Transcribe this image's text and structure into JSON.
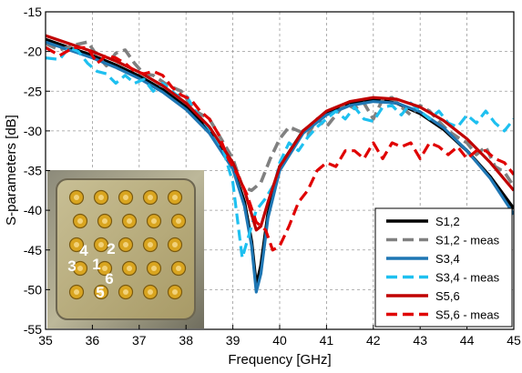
{
  "chart_data": {
    "type": "line",
    "xlabel": "Frequency [GHz]",
    "ylabel": "S-parameters [dB]",
    "xlim": [
      35,
      45
    ],
    "ylim": [
      -55,
      -15
    ],
    "xticks": [
      35,
      36,
      37,
      38,
      39,
      40,
      41,
      42,
      43,
      44,
      45
    ],
    "yticks": [
      -15,
      -20,
      -25,
      -30,
      -35,
      -40,
      -45,
      -50,
      -55
    ],
    "grid": true,
    "legend_position": "bottom-right",
    "series": [
      {
        "name": "S1,2",
        "color": "#000000",
        "style": "solid",
        "points": [
          [
            35,
            -18.5
          ],
          [
            35.5,
            -19.5
          ],
          [
            36,
            -20.5
          ],
          [
            36.5,
            -21.7
          ],
          [
            37,
            -23.1
          ],
          [
            37.5,
            -24.8
          ],
          [
            38,
            -27.0
          ],
          [
            38.5,
            -30.0
          ],
          [
            39,
            -34.5
          ],
          [
            39.25,
            -39.0
          ],
          [
            39.4,
            -44.0
          ],
          [
            39.5,
            -49.5
          ],
          [
            39.6,
            -47.0
          ],
          [
            39.75,
            -40.5
          ],
          [
            40,
            -34.5
          ],
          [
            40.5,
            -30.0
          ],
          [
            41,
            -27.8
          ],
          [
            41.5,
            -26.6
          ],
          [
            42,
            -26.0
          ],
          [
            42.5,
            -26.5
          ],
          [
            43,
            -27.8
          ],
          [
            43.5,
            -29.8
          ],
          [
            44,
            -32.5
          ],
          [
            44.5,
            -35.8
          ],
          [
            45,
            -39.8
          ]
        ]
      },
      {
        "name": "S1,2 - meas",
        "color": "#808080",
        "style": "dashed",
        "points": [
          [
            35,
            -19.0
          ],
          [
            35.3,
            -19.8
          ],
          [
            35.6,
            -19.2
          ],
          [
            35.9,
            -18.8
          ],
          [
            36.1,
            -20.5
          ],
          [
            36.3,
            -21.8
          ],
          [
            36.5,
            -20.2
          ],
          [
            36.7,
            -19.8
          ],
          [
            36.9,
            -21.5
          ],
          [
            37.1,
            -22.8
          ],
          [
            37.3,
            -23.0
          ],
          [
            37.6,
            -24.2
          ],
          [
            37.9,
            -25.0
          ],
          [
            38.2,
            -27.5
          ],
          [
            38.5,
            -28.5
          ],
          [
            38.8,
            -31.5
          ],
          [
            39.0,
            -33.5
          ],
          [
            39.2,
            -37.0
          ],
          [
            39.4,
            -37.5
          ],
          [
            39.6,
            -36.5
          ],
          [
            39.8,
            -33.5
          ],
          [
            40.0,
            -31.0
          ],
          [
            40.2,
            -29.5
          ],
          [
            40.4,
            -30.0
          ],
          [
            40.6,
            -30.5
          ],
          [
            40.8,
            -28.5
          ],
          [
            41.0,
            -29.5
          ],
          [
            41.2,
            -28.0
          ],
          [
            41.4,
            -26.5
          ],
          [
            41.6,
            -27.2
          ],
          [
            41.8,
            -26.5
          ],
          [
            42.0,
            -28.5
          ],
          [
            42.2,
            -26.0
          ],
          [
            42.4,
            -25.8
          ],
          [
            42.6,
            -27.0
          ],
          [
            42.8,
            -28.0
          ],
          [
            43.0,
            -26.8
          ],
          [
            43.2,
            -27.5
          ],
          [
            43.4,
            -28.8
          ],
          [
            43.6,
            -30.0
          ],
          [
            43.8,
            -30.8
          ],
          [
            44.0,
            -31.5
          ],
          [
            44.2,
            -33.0
          ],
          [
            44.4,
            -32.0
          ],
          [
            44.6,
            -34.5
          ],
          [
            44.8,
            -35.2
          ],
          [
            45.0,
            -37.0
          ]
        ]
      },
      {
        "name": "S3,4",
        "color": "#1f77b4",
        "style": "solid",
        "points": [
          [
            35,
            -18.8
          ],
          [
            35.5,
            -19.8
          ],
          [
            36,
            -20.8
          ],
          [
            36.5,
            -22.0
          ],
          [
            37,
            -23.4
          ],
          [
            37.5,
            -25.1
          ],
          [
            38,
            -27.3
          ],
          [
            38.5,
            -30.3
          ],
          [
            39,
            -34.8
          ],
          [
            39.25,
            -39.5
          ],
          [
            39.4,
            -44.5
          ],
          [
            39.5,
            -50.3
          ],
          [
            39.6,
            -48.0
          ],
          [
            39.75,
            -41.0
          ],
          [
            40,
            -35.0
          ],
          [
            40.5,
            -30.3
          ],
          [
            41,
            -28.0
          ],
          [
            41.5,
            -26.8
          ],
          [
            42,
            -26.3
          ],
          [
            42.5,
            -26.5
          ],
          [
            43,
            -27.6
          ],
          [
            43.5,
            -29.6
          ],
          [
            44,
            -32.5
          ],
          [
            44.5,
            -36.0
          ],
          [
            45,
            -40.5
          ]
        ]
      },
      {
        "name": "S3,4 - meas",
        "color": "#1ec0f0",
        "style": "dashed",
        "points": [
          [
            35,
            -20.8
          ],
          [
            35.3,
            -21.0
          ],
          [
            35.5,
            -19.5
          ],
          [
            35.7,
            -20.0
          ],
          [
            35.9,
            -21.5
          ],
          [
            36.1,
            -22.5
          ],
          [
            36.3,
            -22.8
          ],
          [
            36.5,
            -24.0
          ],
          [
            36.7,
            -23.0
          ],
          [
            36.9,
            -24.0
          ],
          [
            37.1,
            -23.5
          ],
          [
            37.3,
            -25.0
          ],
          [
            37.5,
            -24.0
          ],
          [
            37.8,
            -25.5
          ],
          [
            38.0,
            -25.5
          ],
          [
            38.2,
            -27.5
          ],
          [
            38.4,
            -29.0
          ],
          [
            38.6,
            -30.5
          ],
          [
            38.8,
            -32.5
          ],
          [
            39.0,
            -36.5
          ],
          [
            39.2,
            -46.0
          ],
          [
            39.35,
            -43.0
          ],
          [
            39.5,
            -40.0
          ],
          [
            39.7,
            -38.5
          ],
          [
            39.9,
            -36.5
          ],
          [
            40.0,
            -34.0
          ],
          [
            40.2,
            -31.5
          ],
          [
            40.4,
            -32.5
          ],
          [
            40.6,
            -30.8
          ],
          [
            40.8,
            -29.5
          ],
          [
            41.0,
            -28.5
          ],
          [
            41.2,
            -27.5
          ],
          [
            41.4,
            -28.5
          ],
          [
            41.6,
            -27.0
          ],
          [
            41.8,
            -28.5
          ],
          [
            42.0,
            -28.8
          ],
          [
            42.2,
            -27.0
          ],
          [
            42.4,
            -26.8
          ],
          [
            42.6,
            -28.0
          ],
          [
            42.8,
            -26.5
          ],
          [
            43.0,
            -27.5
          ],
          [
            43.2,
            -28.5
          ],
          [
            43.4,
            -27.5
          ],
          [
            43.6,
            -29.0
          ],
          [
            43.8,
            -29.5
          ],
          [
            44.0,
            -28.0
          ],
          [
            44.2,
            -29.0
          ],
          [
            44.4,
            -27.5
          ],
          [
            44.6,
            -29.0
          ],
          [
            44.8,
            -30.0
          ],
          [
            45.0,
            -28.5
          ]
        ]
      },
      {
        "name": "S5,6",
        "color": "#c00000",
        "style": "solid",
        "points": [
          [
            35,
            -18.0
          ],
          [
            35.5,
            -19.0
          ],
          [
            36,
            -20.0
          ],
          [
            36.5,
            -21.2
          ],
          [
            37,
            -22.6
          ],
          [
            37.5,
            -24.3
          ],
          [
            38,
            -26.5
          ],
          [
            38.5,
            -29.5
          ],
          [
            39,
            -34.0
          ],
          [
            39.25,
            -37.5
          ],
          [
            39.4,
            -40.5
          ],
          [
            39.5,
            -42.5
          ],
          [
            39.6,
            -42.0
          ],
          [
            39.75,
            -39.0
          ],
          [
            40,
            -34.5
          ],
          [
            40.5,
            -30.0
          ],
          [
            41,
            -27.5
          ],
          [
            41.5,
            -26.3
          ],
          [
            42,
            -25.8
          ],
          [
            42.5,
            -26.0
          ],
          [
            43,
            -27.0
          ],
          [
            43.5,
            -28.7
          ],
          [
            44,
            -31.0
          ],
          [
            44.5,
            -34.0
          ],
          [
            45,
            -37.5
          ]
        ]
      },
      {
        "name": "S5,6 - meas",
        "color": "#e00000",
        "style": "dashed",
        "points": [
          [
            35,
            -19.5
          ],
          [
            35.3,
            -20.5
          ],
          [
            35.6,
            -19.5
          ],
          [
            35.9,
            -19.5
          ],
          [
            36.1,
            -21.5
          ],
          [
            36.3,
            -20.5
          ],
          [
            36.5,
            -20.8
          ],
          [
            36.7,
            -21.5
          ],
          [
            36.9,
            -22.5
          ],
          [
            37.1,
            -22.8
          ],
          [
            37.3,
            -22.5
          ],
          [
            37.5,
            -23.0
          ],
          [
            37.7,
            -24.5
          ],
          [
            37.9,
            -25.5
          ],
          [
            38.1,
            -26.0
          ],
          [
            38.3,
            -27.5
          ],
          [
            38.5,
            -28.5
          ],
          [
            38.7,
            -30.5
          ],
          [
            38.9,
            -33.5
          ],
          [
            39.1,
            -35.5
          ],
          [
            39.3,
            -38.0
          ],
          [
            39.5,
            -41.5
          ],
          [
            39.7,
            -42.5
          ],
          [
            39.85,
            -45.0
          ],
          [
            40.0,
            -44.5
          ],
          [
            40.2,
            -42.0
          ],
          [
            40.4,
            -39.0
          ],
          [
            40.6,
            -37.5
          ],
          [
            40.8,
            -35.0
          ],
          [
            41.0,
            -34.0
          ],
          [
            41.2,
            -34.5
          ],
          [
            41.4,
            -32.5
          ],
          [
            41.6,
            -32.5
          ],
          [
            41.8,
            -33.5
          ],
          [
            42.0,
            -31.5
          ],
          [
            42.2,
            -33.5
          ],
          [
            42.4,
            -31.5
          ],
          [
            42.6,
            -32.0
          ],
          [
            42.8,
            -31.5
          ],
          [
            43.0,
            -33.5
          ],
          [
            43.2,
            -31.5
          ],
          [
            43.4,
            -32.0
          ],
          [
            43.6,
            -33.0
          ],
          [
            43.8,
            -32.0
          ],
          [
            44.0,
            -33.5
          ],
          [
            44.2,
            -32.5
          ],
          [
            44.4,
            -32.5
          ],
          [
            44.6,
            -33.5
          ],
          [
            44.8,
            -34.0
          ],
          [
            45.0,
            -35.5
          ]
        ]
      }
    ],
    "inset": {
      "labels": [
        "1",
        "2",
        "3",
        "4",
        "5",
        "6"
      ]
    }
  }
}
